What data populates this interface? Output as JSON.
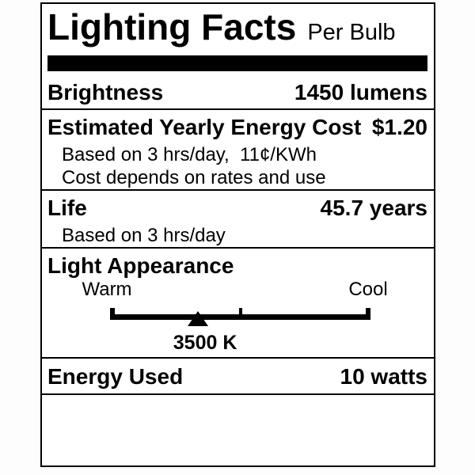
{
  "colors": {
    "ink": "#000000",
    "paper": "#ffffff"
  },
  "label": {
    "title": "Lighting Facts",
    "subtitle": "Per Bulb",
    "brightness": {
      "name": "Brightness",
      "value": "1450 lumens"
    },
    "energy_cost": {
      "name": "Estimated Yearly Energy Cost",
      "value": "$1.20",
      "note_basis": "Based on 3 hrs/day,  11¢/KWh",
      "note_disclaimer": "Cost depends on rates and use"
    },
    "life": {
      "name": "Life",
      "value": "45.7 years",
      "note_basis": "Based on 3 hrs/day"
    },
    "light_appearance": {
      "name": "Light Appearance",
      "warm_label": "Warm",
      "cool_label": "Cool",
      "kelvin": "3500 K",
      "scale": {
        "marker_fraction": 0.337,
        "kelvin_text_fraction": 0.365,
        "mid_tick_fraction": 0.5
      }
    },
    "energy_used": {
      "name": "Energy Used",
      "value": "10 watts"
    }
  }
}
